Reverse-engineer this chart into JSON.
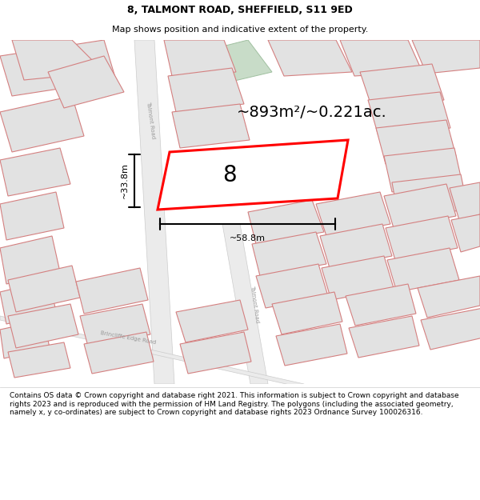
{
  "title_line1": "8, TALMONT ROAD, SHEFFIELD, S11 9ED",
  "title_line2": "Map shows position and indicative extent of the property.",
  "area_text": "~893m²/~0.221ac.",
  "width_label": "~58.8m",
  "height_label": "~33.8m",
  "plot_number": "8",
  "footer_text": "Contains OS data © Crown copyright and database right 2021. This information is subject to Crown copyright and database rights 2023 and is reproduced with the permission of HM Land Registry. The polygons (including the associated geometry, namely x, y co-ordinates) are subject to Crown copyright and database rights 2023 Ordnance Survey 100026316.",
  "map_bg": "#f2f2f2",
  "block_fill": "#e2e2e2",
  "block_edge": "#d48080",
  "road_fill": "#ececec",
  "highlight_color": "#ff0000",
  "highlight_fill": "#ffffff",
  "green_fill": "#c8dcc8",
  "title_fontsize": 9,
  "subtitle_fontsize": 8,
  "area_fontsize": 14,
  "plot_fontsize": 20,
  "dim_fontsize": 8,
  "road_label_fontsize": 5,
  "footer_fontsize": 6.5
}
